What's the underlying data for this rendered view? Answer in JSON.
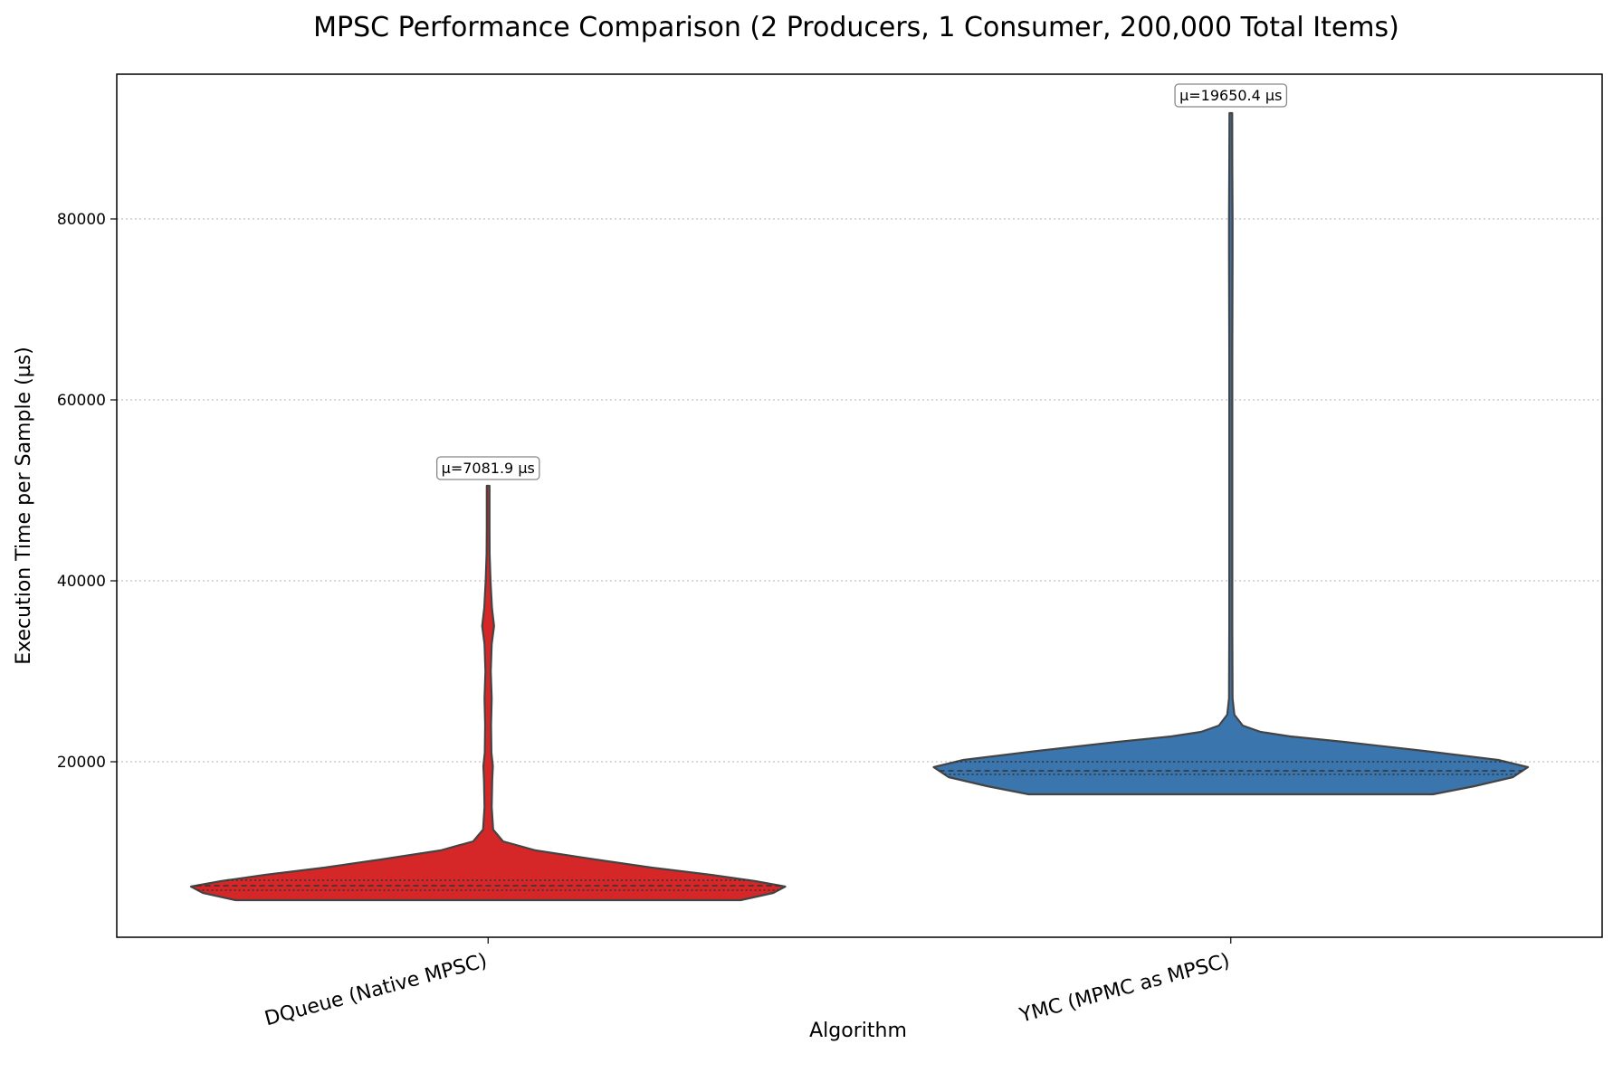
{
  "chart_data": {
    "type": "violin",
    "title": "MPSC Performance Comparison (2 Producers, 1 Consumer, 200,000 Total Items)",
    "xlabel": "Algorithm",
    "ylabel": "Execution Time per Sample (µs)",
    "ylim": [
      600,
      96000
    ],
    "yticks": [
      20000,
      40000,
      60000,
      80000
    ],
    "grid": "horizontal-dotted",
    "categories": [
      "DQueue (Native MPSC)",
      "YMC (MPMC as MPSC)"
    ],
    "series": [
      {
        "color": "#d62728",
        "min": 4700,
        "max": 50500,
        "q1": 5800,
        "median": 6300,
        "q3": 6900,
        "mean_label": "µ=7081.9 µs",
        "profile": [
          [
            4700,
            0.85
          ],
          [
            5500,
            0.96
          ],
          [
            6200,
            1.0
          ],
          [
            6800,
            0.9
          ],
          [
            7500,
            0.75
          ],
          [
            8300,
            0.55
          ],
          [
            9200,
            0.36
          ],
          [
            10200,
            0.16
          ],
          [
            11200,
            0.05
          ],
          [
            12500,
            0.017
          ],
          [
            15000,
            0.012
          ],
          [
            18000,
            0.014
          ],
          [
            19500,
            0.016
          ],
          [
            21000,
            0.011
          ],
          [
            24000,
            0.01
          ],
          [
            27000,
            0.012
          ],
          [
            30000,
            0.009
          ],
          [
            33000,
            0.012
          ],
          [
            35000,
            0.02
          ],
          [
            37000,
            0.013
          ],
          [
            40000,
            0.008
          ],
          [
            43000,
            0.005
          ],
          [
            46000,
            0.003
          ],
          [
            50500,
            0.002
          ]
        ]
      },
      {
        "color": "#3a75ae",
        "min": 16400,
        "max": 91700,
        "q1": 18600,
        "median": 19000,
        "q3": 20000,
        "mean_label": "µ=19650.4 µs",
        "profile": [
          [
            16400,
            0.68
          ],
          [
            17300,
            0.82
          ],
          [
            18300,
            0.95
          ],
          [
            19400,
            1.0
          ],
          [
            20200,
            0.9
          ],
          [
            21200,
            0.65
          ],
          [
            22200,
            0.38
          ],
          [
            22800,
            0.2
          ],
          [
            23300,
            0.1
          ],
          [
            24000,
            0.04
          ],
          [
            25200,
            0.012
          ],
          [
            27000,
            0.006
          ],
          [
            35000,
            0.005
          ],
          [
            50000,
            0.005
          ],
          [
            65000,
            0.005
          ],
          [
            76000,
            0.006
          ],
          [
            80000,
            0.006
          ],
          [
            86000,
            0.005
          ],
          [
            91700,
            0.004
          ]
        ]
      }
    ]
  }
}
